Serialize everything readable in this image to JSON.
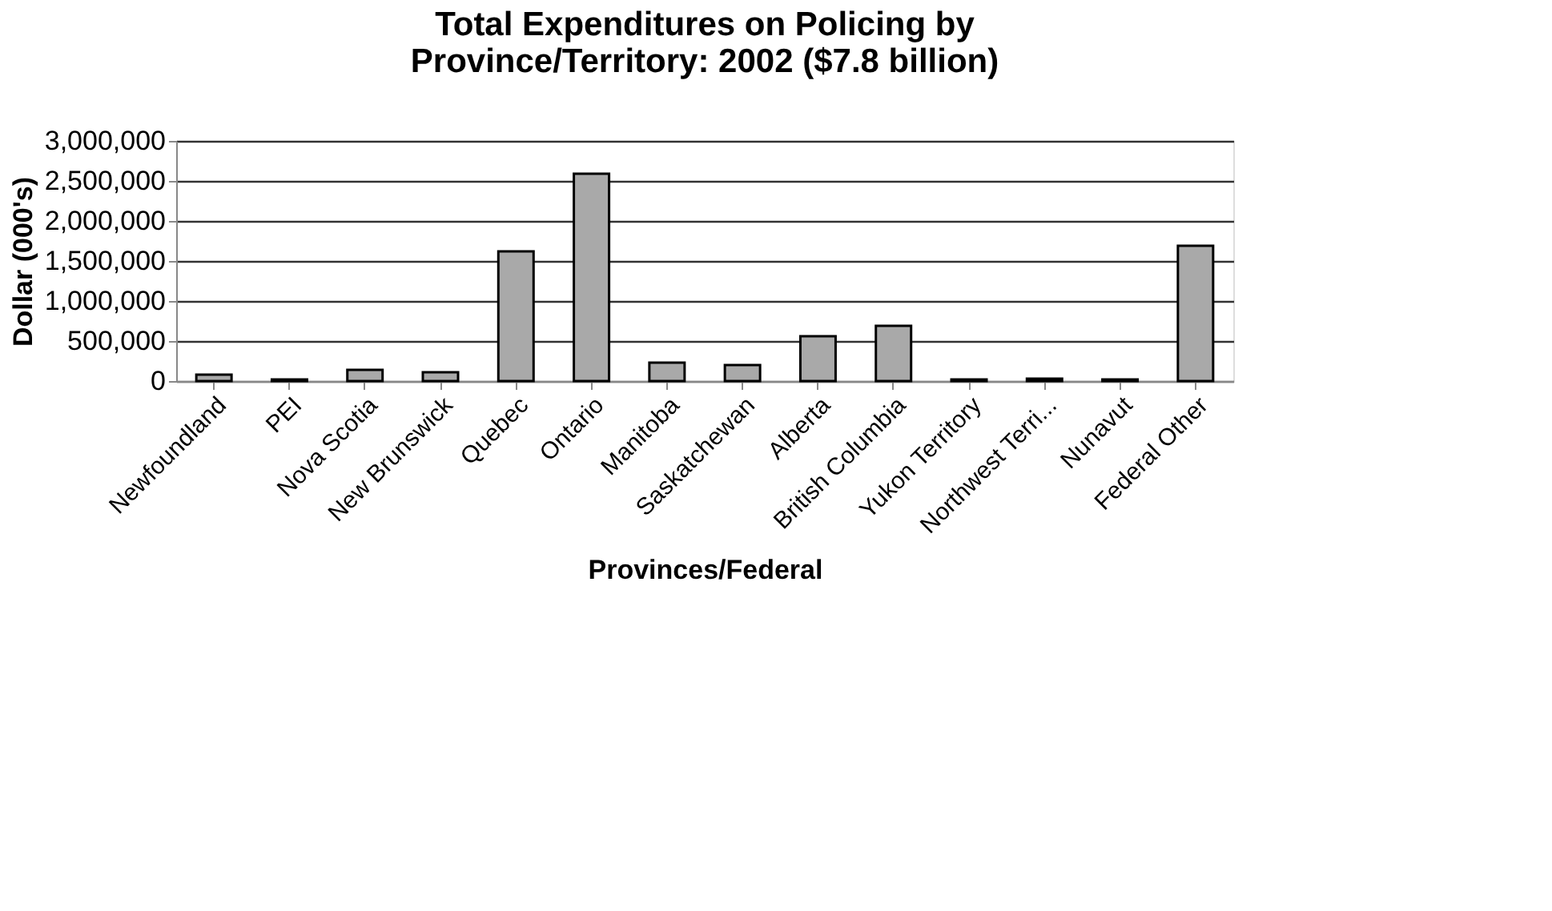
{
  "chart_data": {
    "type": "bar",
    "title": [
      "Total Expenditures on Policing by",
      "Province/Territory: 2002 ($7.8 billion)"
    ],
    "xlabel": "Provinces/Federal",
    "ylabel": "Dollar (000's)",
    "categories": [
      "Newfoundland",
      "PEI",
      "Nova Scotia",
      "New Brunswick",
      "Quebec",
      "Ontario",
      "Manitoba",
      "Saskatchewan",
      "Alberta",
      "British Columbia",
      "Yukon Territory",
      "Northwest Terri...",
      "Nunavut",
      "Federal Other"
    ],
    "values": [
      80000,
      20000,
      140000,
      110000,
      1620000,
      2590000,
      230000,
      200000,
      560000,
      690000,
      20000,
      30000,
      20000,
      1690000
    ],
    "color": "#a9a9a9",
    "ylim": [
      0,
      3000000
    ],
    "yticks": [
      0,
      {
        "value": 500000,
        "label": "500,000"
      },
      {
        "value": 1000000,
        "label": "1,000,000"
      },
      {
        "value": 1500000,
        "label": "1,500,000"
      },
      {
        "value": 2000000,
        "label": "2,000,000"
      },
      {
        "value": 2500000,
        "label": "2,500,000"
      },
      {
        "value": 3000000,
        "label": "3,000,000"
      }
    ],
    "grid": "y"
  }
}
